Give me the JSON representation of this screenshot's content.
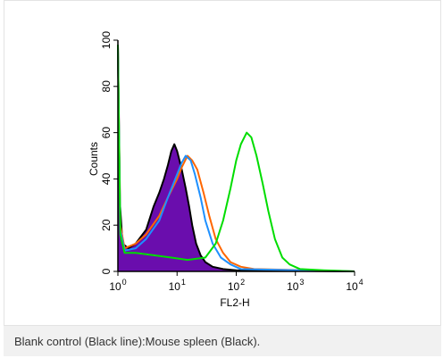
{
  "caption": "Blank control (Black line):Mouse spleen (Black).",
  "chart_data": {
    "type": "area",
    "title": "",
    "xlabel": "FL2-H",
    "ylabel": "Counts",
    "xscale": "log",
    "xlim": [
      1,
      10000
    ],
    "ylim": [
      0,
      100
    ],
    "x_ticks": [
      {
        "base": "10",
        "exp": "0"
      },
      {
        "base": "10",
        "exp": "1"
      },
      {
        "base": "10",
        "exp": "2"
      },
      {
        "base": "10",
        "exp": "3"
      },
      {
        "base": "10",
        "exp": "4"
      }
    ],
    "y_ticks": [
      "0",
      "20",
      "40",
      "60",
      "80",
      "100"
    ],
    "grid": false,
    "legend": "none",
    "series": [
      {
        "color": "#6a0dad",
        "fill": true,
        "points": [
          [
            1,
            98
          ],
          [
            1.08,
            30
          ],
          [
            1.2,
            12
          ],
          [
            1.5,
            10
          ],
          [
            2,
            12
          ],
          [
            3,
            18
          ],
          [
            4,
            28
          ],
          [
            5,
            34
          ],
          [
            6,
            40
          ],
          [
            7,
            46
          ],
          [
            8,
            52
          ],
          [
            9,
            55
          ],
          [
            10,
            52
          ],
          [
            11,
            48
          ],
          [
            12,
            44
          ],
          [
            14,
            36
          ],
          [
            16,
            28
          ],
          [
            18,
            20
          ],
          [
            21,
            12
          ],
          [
            25,
            7
          ],
          [
            30,
            4
          ],
          [
            40,
            2
          ],
          [
            60,
            1
          ],
          [
            100,
            0.5
          ],
          [
            10000,
            0
          ]
        ]
      },
      {
        "color": "#000000",
        "fill": false,
        "points": [
          [
            1,
            98
          ],
          [
            1.08,
            30
          ],
          [
            1.2,
            12
          ],
          [
            1.5,
            10
          ],
          [
            2,
            12
          ],
          [
            3,
            18
          ],
          [
            4,
            28
          ],
          [
            5,
            34
          ],
          [
            6,
            40
          ],
          [
            7,
            46
          ],
          [
            8,
            52
          ],
          [
            9,
            55
          ],
          [
            10,
            52
          ],
          [
            11,
            48
          ],
          [
            12,
            44
          ],
          [
            14,
            36
          ],
          [
            16,
            28
          ],
          [
            18,
            20
          ],
          [
            21,
            12
          ],
          [
            25,
            7
          ],
          [
            30,
            4
          ],
          [
            40,
            2
          ],
          [
            60,
            1
          ],
          [
            100,
            0.5
          ],
          [
            10000,
            0
          ]
        ]
      },
      {
        "color": "#ff6600",
        "fill": false,
        "points": [
          [
            1,
            98
          ],
          [
            1.1,
            20
          ],
          [
            1.3,
            10
          ],
          [
            2,
            12
          ],
          [
            3,
            16
          ],
          [
            5,
            24
          ],
          [
            7,
            32
          ],
          [
            10,
            40
          ],
          [
            12,
            45
          ],
          [
            15,
            50
          ],
          [
            18,
            48
          ],
          [
            22,
            44
          ],
          [
            28,
            34
          ],
          [
            35,
            24
          ],
          [
            45,
            14
          ],
          [
            60,
            8
          ],
          [
            80,
            4
          ],
          [
            120,
            2
          ],
          [
            200,
            1
          ],
          [
            10000,
            0
          ]
        ]
      },
      {
        "color": "#1e90ff",
        "fill": false,
        "points": [
          [
            1,
            98
          ],
          [
            1.1,
            18
          ],
          [
            1.3,
            9
          ],
          [
            2,
            10
          ],
          [
            3,
            14
          ],
          [
            5,
            22
          ],
          [
            7,
            32
          ],
          [
            10,
            42
          ],
          [
            12,
            47
          ],
          [
            14,
            50
          ],
          [
            17,
            48
          ],
          [
            20,
            42
          ],
          [
            25,
            32
          ],
          [
            30,
            22
          ],
          [
            40,
            12
          ],
          [
            55,
            6
          ],
          [
            80,
            3
          ],
          [
            120,
            1
          ],
          [
            10000,
            0
          ]
        ]
      },
      {
        "color": "#00dd00",
        "fill": false,
        "points": [
          [
            1,
            98
          ],
          [
            1.1,
            16
          ],
          [
            1.3,
            8
          ],
          [
            2,
            8
          ],
          [
            4,
            7
          ],
          [
            8,
            6
          ],
          [
            15,
            5
          ],
          [
            30,
            6
          ],
          [
            45,
            12
          ],
          [
            60,
            22
          ],
          [
            80,
            36
          ],
          [
            100,
            48
          ],
          [
            120,
            55
          ],
          [
            150,
            60
          ],
          [
            180,
            58
          ],
          [
            220,
            50
          ],
          [
            280,
            38
          ],
          [
            350,
            26
          ],
          [
            450,
            14
          ],
          [
            600,
            6
          ],
          [
            800,
            3
          ],
          [
            1200,
            1
          ],
          [
            3000,
            0.5
          ],
          [
            10000,
            0
          ]
        ]
      }
    ]
  }
}
